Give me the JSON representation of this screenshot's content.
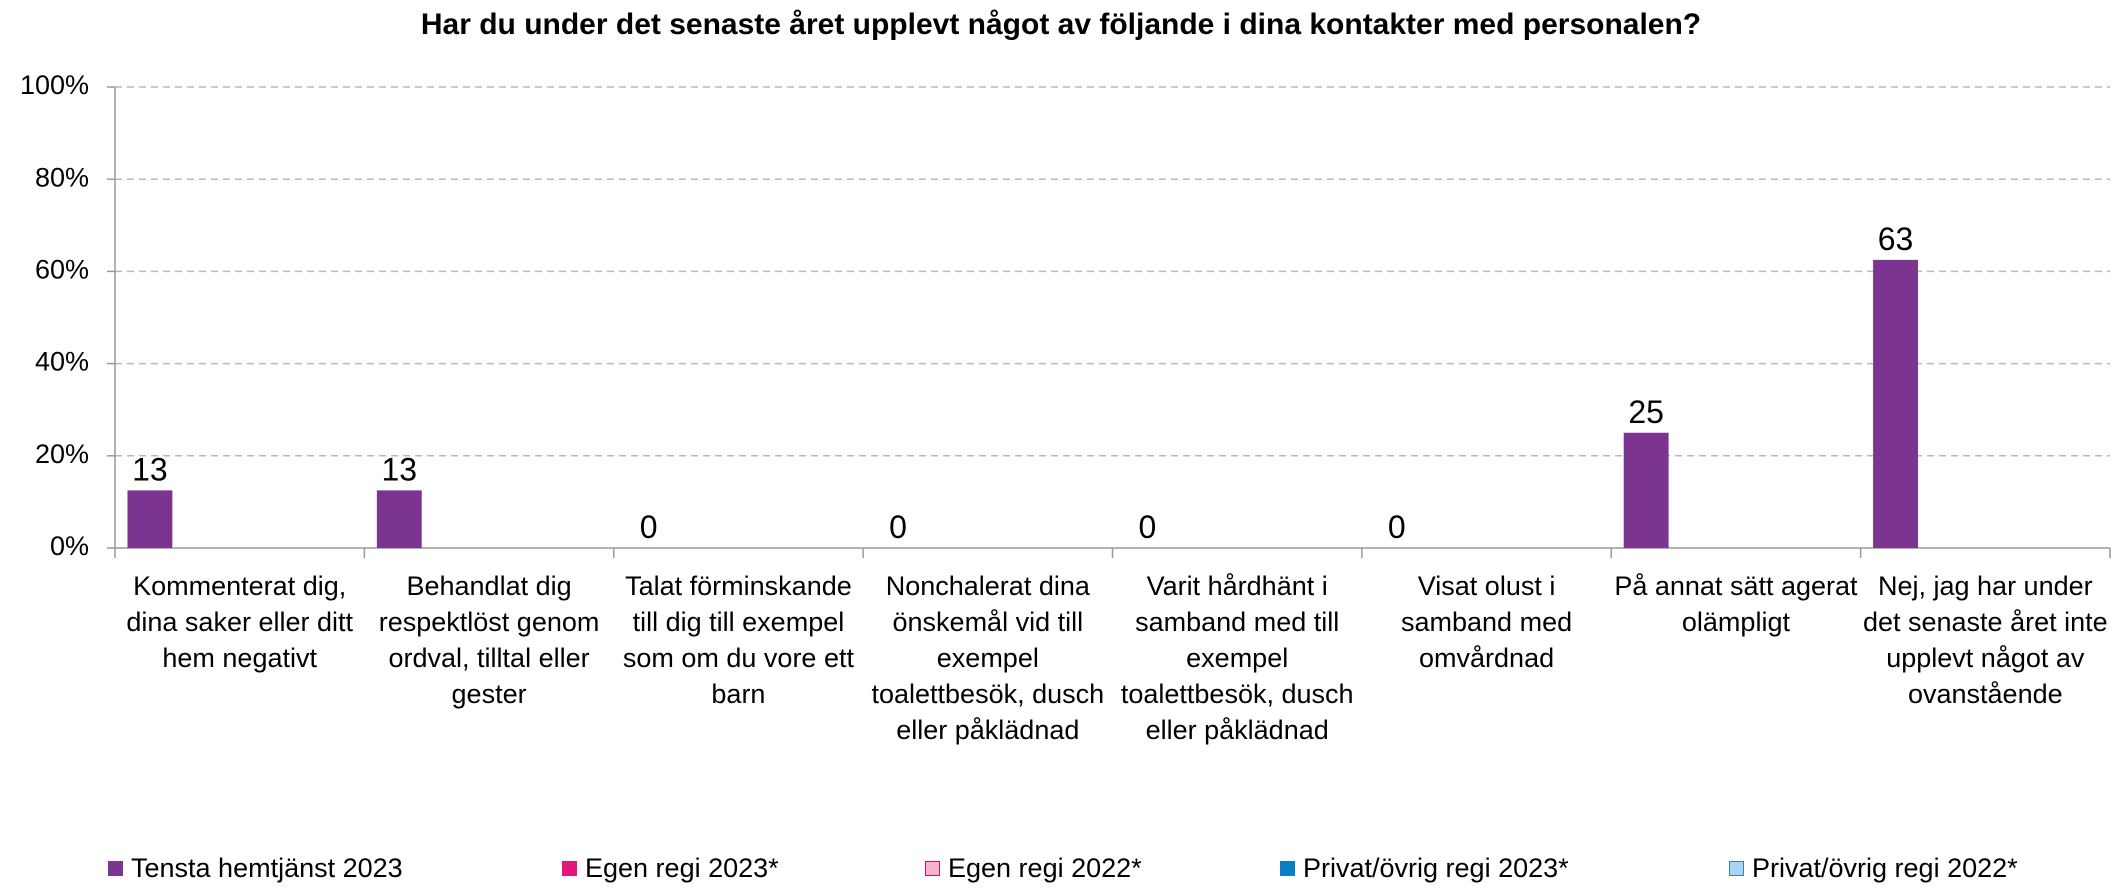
{
  "chart_data": {
    "type": "bar",
    "title": "Har du under det senaste året upplevt något av följande i dina kontakter med personalen?",
    "categories": [
      "Kommenterat dig, dina saker eller ditt hem negativt",
      "Behandlat dig respektlöst genom ordval, tilltal eller gester",
      "Talat förminskande till dig till exempel som om du vore ett barn",
      "Nonchalerat dina önskemål vid till exempel toalettbesök, dusch eller påklädnad",
      "Varit hårdhänt i samband med till exempel toalettbesök, dusch eller påklädnad",
      "Visat olust i samband med omvårdnad",
      "På annat sätt agerat olämpligt",
      "Nej, jag har under det senaste året inte upplevt något av ovanstående"
    ],
    "series": [
      {
        "name": "Tensta hemtjänst 2023",
        "color": "#7b3590",
        "values": [
          12.5,
          12.5,
          0,
          0,
          0,
          0,
          25,
          62.5
        ],
        "value_labels": [
          "13",
          "13",
          "0",
          "0",
          "0",
          "0",
          "25",
          "63"
        ]
      },
      {
        "name": "Egen regi 2023*",
        "color": "#e2177c",
        "values": [
          null,
          null,
          null,
          null,
          null,
          null,
          null,
          null
        ]
      },
      {
        "name": "Egen regi 2022*",
        "color": "#f7b3d0",
        "values": [
          null,
          null,
          null,
          null,
          null,
          null,
          null,
          null
        ]
      },
      {
        "name": "Privat/övrig regi 2023*",
        "color": "#0a7fc4",
        "values": [
          null,
          null,
          null,
          null,
          null,
          null,
          null,
          null
        ]
      },
      {
        "name": "Privat/övrig regi 2022*",
        "color": "#a9d4f2",
        "values": [
          null,
          null,
          null,
          null,
          null,
          null,
          null,
          null
        ]
      }
    ],
    "ylim": [
      0,
      100
    ],
    "yticks": [
      {
        "value": 0,
        "label": "0%"
      },
      {
        "value": 20,
        "label": "20%"
      },
      {
        "value": 40,
        "label": "40%"
      },
      {
        "value": 60,
        "label": "60%"
      },
      {
        "value": 80,
        "label": "80%"
      },
      {
        "value": 100,
        "label": "100%"
      }
    ],
    "grid": true,
    "legend": "bottom"
  }
}
